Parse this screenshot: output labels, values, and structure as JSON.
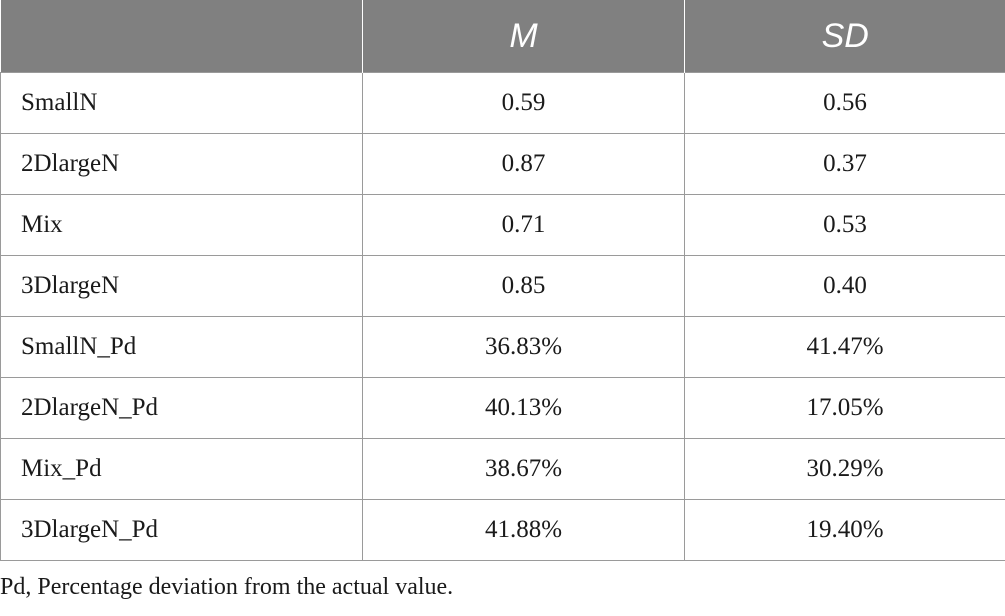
{
  "table": {
    "columns": [
      "",
      "M",
      "SD"
    ],
    "rows": [
      {
        "label": "SmallN",
        "m": "0.59",
        "sd": "0.56"
      },
      {
        "label": "2DlargeN",
        "m": "0.87",
        "sd": "0.37"
      },
      {
        "label": "Mix",
        "m": "0.71",
        "sd": "0.53"
      },
      {
        "label": "3DlargeN",
        "m": "0.85",
        "sd": "0.40"
      },
      {
        "label": "SmallN_Pd",
        "m": "36.83%",
        "sd": "41.47%"
      },
      {
        "label": "2DlargeN_Pd",
        "m": "40.13%",
        "sd": "17.05%"
      },
      {
        "label": "Mix_Pd",
        "m": "38.67%",
        "sd": "30.29%"
      },
      {
        "label": "3DlargeN_Pd",
        "m": "41.88%",
        "sd": "19.40%"
      }
    ]
  },
  "footnote": "Pd, Percentage deviation from the actual value.",
  "colors": {
    "header_bg": "#808080",
    "header_text": "#ffffff",
    "border": "#9a9a9a"
  }
}
